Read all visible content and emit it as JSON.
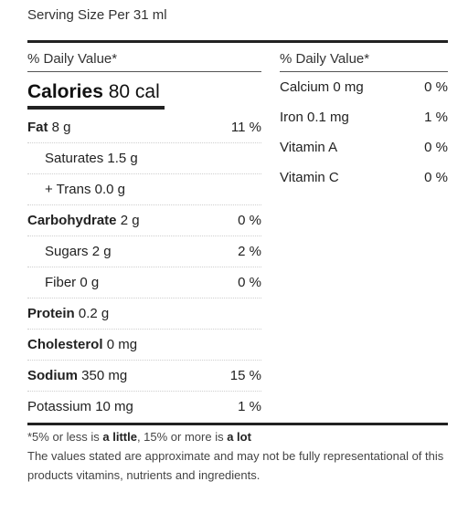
{
  "serving_size": "Serving Size Per 31 ml",
  "daily_value_header": "% Daily Value*",
  "calories": {
    "label": "Calories",
    "value": "80 cal"
  },
  "left_rows": [
    {
      "label": "Fat",
      "amount": "8 g",
      "pct": "11 %",
      "bold": true,
      "sub": false
    },
    {
      "label": "Saturates",
      "amount": "1.5 g",
      "pct": "",
      "bold": false,
      "sub": true
    },
    {
      "label": "+ Trans",
      "amount": "0.0 g",
      "pct": "",
      "bold": false,
      "sub": true
    },
    {
      "label": "Carbohydrate",
      "amount": "2 g",
      "pct": "0 %",
      "bold": true,
      "sub": false
    },
    {
      "label": "Sugars",
      "amount": "2 g",
      "pct": "2 %",
      "bold": false,
      "sub": true
    },
    {
      "label": "Fiber",
      "amount": "0 g",
      "pct": "0 %",
      "bold": false,
      "sub": true
    },
    {
      "label": "Protein",
      "amount": "0.2 g",
      "pct": "",
      "bold": true,
      "sub": false
    },
    {
      "label": "Cholesterol",
      "amount": "0 mg",
      "pct": "",
      "bold": true,
      "sub": false
    },
    {
      "label": "Sodium",
      "amount": "350 mg",
      "pct": "15 %",
      "bold": true,
      "sub": false
    },
    {
      "label": "Potassium",
      "amount": "10 mg",
      "pct": "1 %",
      "bold": false,
      "sub": false
    }
  ],
  "right_rows": [
    {
      "label": "Calcium",
      "amount": "0 mg",
      "pct": "0 %"
    },
    {
      "label": "Iron",
      "amount": "0.1 mg",
      "pct": "1 %"
    },
    {
      "label": "Vitamin A",
      "amount": "",
      "pct": "0 %"
    },
    {
      "label": "Vitamin C",
      "amount": "",
      "pct": "0 %"
    }
  ],
  "footnote": {
    "part1": "*5% or less is ",
    "little": "a little",
    "part2": ", 15% or more is ",
    "lot": "a lot",
    "disclaimer": "The values stated are approximate and may not be fully representational of this products vitamins, nutrients and ingredients."
  }
}
